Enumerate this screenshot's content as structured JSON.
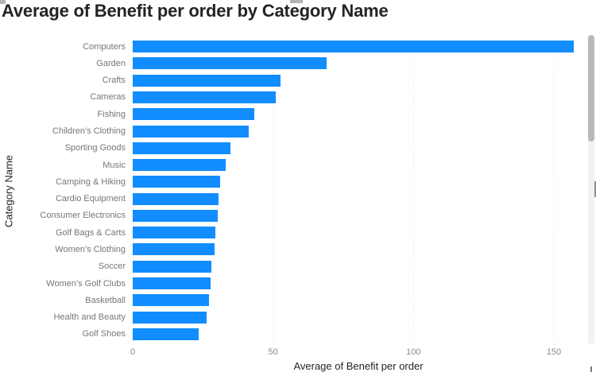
{
  "title": "Average of Benefit per order by Category Name",
  "chart_data": {
    "type": "bar",
    "orientation": "horizontal",
    "title": "Average of Benefit per order by Category Name",
    "xlabel": "Average of Benefit per order",
    "ylabel": "Category Name",
    "categories": [
      "Computers",
      "Garden",
      "Crafts",
      "Cameras",
      "Fishing",
      "Children's Clothing",
      "Sporting Goods",
      "Music",
      "Camping & Hiking",
      "Cardio Equipment",
      "Consumer Electronics",
      "Golf Bags & Carts",
      "Women's Clothing",
      "Soccer",
      "Women's Golf Clubs",
      "Basketball",
      "Health and Beauty",
      "Golf Shoes"
    ],
    "values": [
      157,
      69,
      52.5,
      51,
      43.4,
      41.3,
      34.8,
      33,
      31,
      30.5,
      30.3,
      29.4,
      29.2,
      28.1,
      27.6,
      27.1,
      26.2,
      23.6
    ],
    "xticks": [
      0,
      50,
      100,
      150
    ],
    "xlim": [
      0,
      160.5
    ],
    "grid": "vertical-dotted",
    "legend": "none",
    "bar_color": "#118DFF"
  },
  "colors": {
    "bar": "#118DFF",
    "title_text": "#252423",
    "axis_title_text": "#252423",
    "tick_text": "#8a8a8a",
    "category_text": "#777674",
    "gridline": "#dcdcdc",
    "scrollbar_track": "#f1f1f1",
    "scrollbar_thumb": "#b9b9b9"
  }
}
